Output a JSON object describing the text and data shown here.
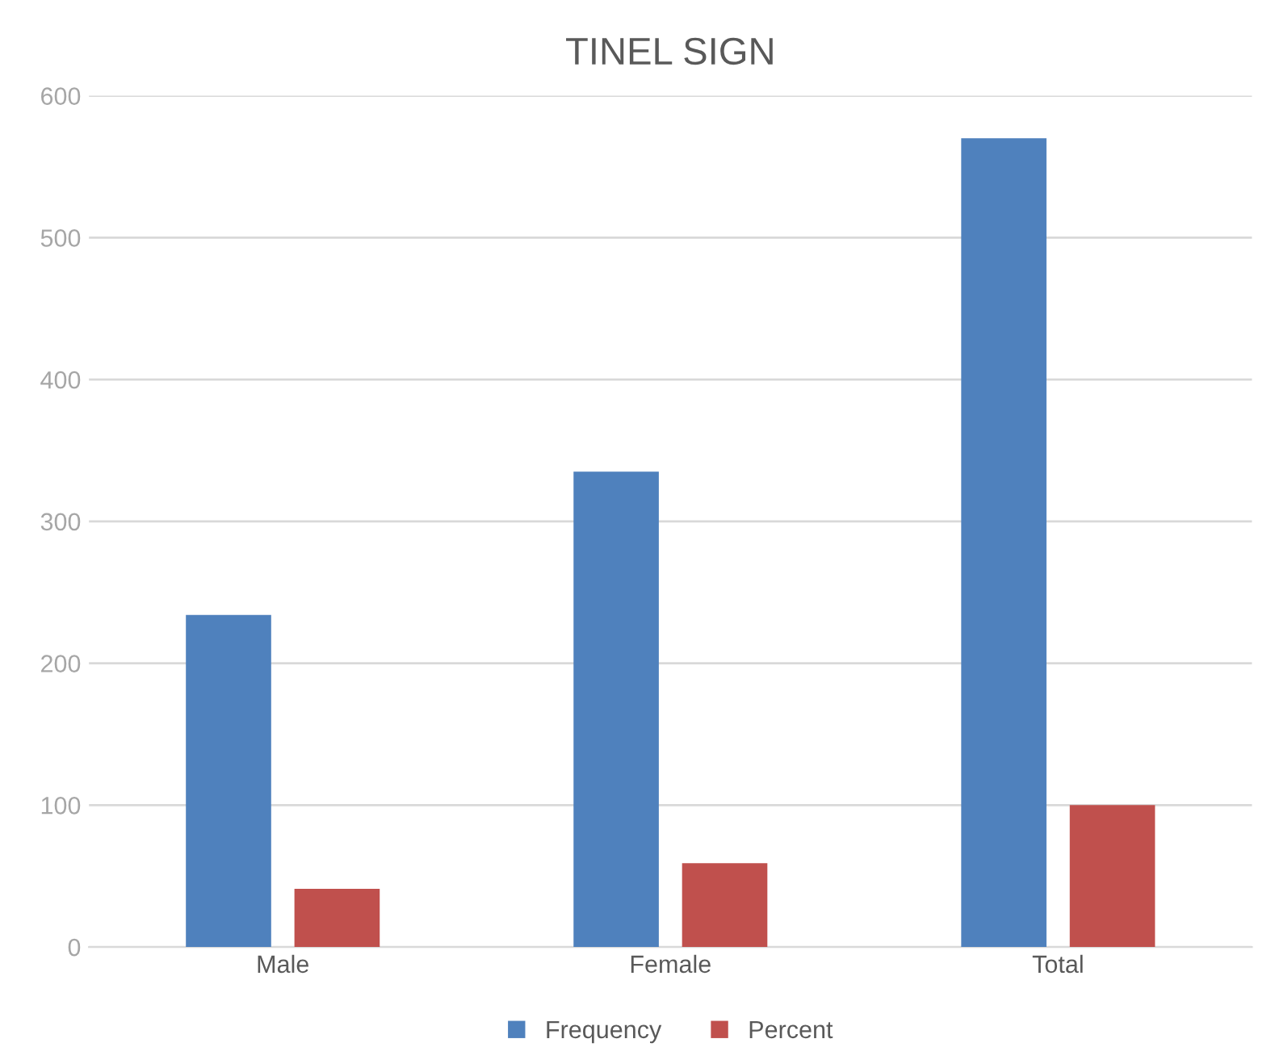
{
  "chart_data": {
    "type": "bar",
    "title": "TINEL SIGN",
    "categories": [
      "Male",
      "Female",
      "Total"
    ],
    "series": [
      {
        "name": "Frequency",
        "color": "#4f81bd",
        "values": [
          234,
          335,
          570
        ]
      },
      {
        "name": "Percent",
        "color": "#c0504d",
        "values": [
          41,
          59,
          100
        ]
      }
    ],
    "ylim": [
      0,
      600
    ],
    "yticks": [
      0,
      100,
      200,
      300,
      400,
      500,
      600
    ],
    "grid": "y",
    "legend": "bottom"
  }
}
